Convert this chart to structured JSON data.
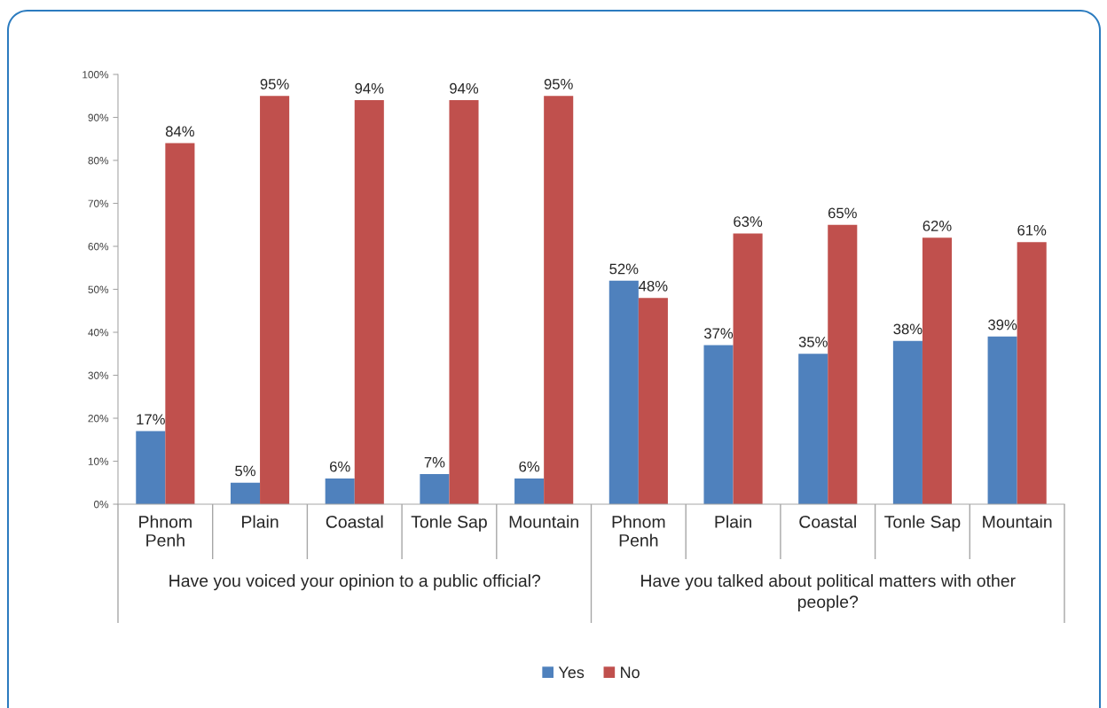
{
  "chart_data": {
    "type": "bar",
    "categories": [
      "Phnom Penh",
      "Plain",
      "Coastal",
      "Tonle Sap",
      "Mountain",
      "Phnom Penh",
      "Plain",
      "Coastal",
      "Tonle Sap",
      "Mountain"
    ],
    "series": [
      {
        "name": "Yes",
        "color": "#4f81bd",
        "values": [
          17,
          5,
          6,
          7,
          6,
          52,
          37,
          35,
          38,
          39
        ],
        "value_labels": [
          "17%",
          "5%",
          "6%",
          "7%",
          "6%",
          "52%",
          "37%",
          "35%",
          "38%",
          "39%"
        ]
      },
      {
        "name": "No",
        "color": "#c0504d",
        "values": [
          84,
          95,
          94,
          94,
          95,
          48,
          63,
          65,
          62,
          61
        ],
        "value_labels": [
          "84%",
          "95%",
          "94%",
          "94%",
          "95%",
          "48%",
          "63%",
          "65%",
          "62%",
          "61%"
        ]
      }
    ],
    "ylim": [
      0,
      100
    ],
    "yticks": [
      {
        "value": 0,
        "label": "0%"
      },
      {
        "value": 10,
        "label": "10%"
      },
      {
        "value": 20,
        "label": "20%"
      },
      {
        "value": 30,
        "label": "30%"
      },
      {
        "value": 40,
        "label": "40%"
      },
      {
        "value": 50,
        "label": "50%"
      },
      {
        "value": 60,
        "label": "60%"
      },
      {
        "value": 70,
        "label": "70%"
      },
      {
        "value": 80,
        "label": "80%"
      },
      {
        "value": 90,
        "label": "90%"
      },
      {
        "value": 100,
        "label": "100%"
      }
    ],
    "annotations": [
      "Have you voiced your opinion to a public official?",
      "Have you talked about political matters with other people?"
    ],
    "legend": "bottom"
  }
}
